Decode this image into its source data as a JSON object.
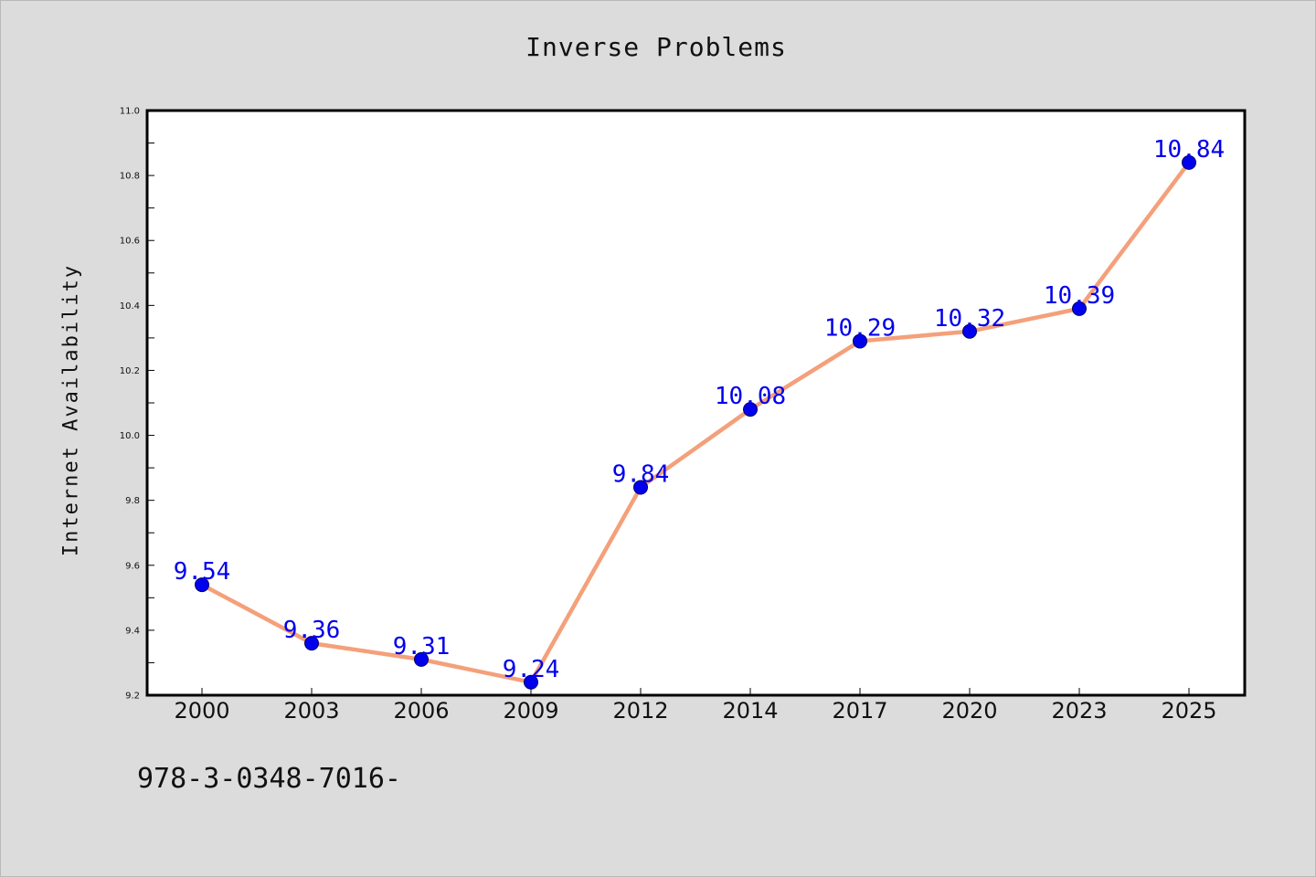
{
  "chart_data": {
    "type": "line",
    "title": "Inverse Problems",
    "ylabel": "Internet Availability",
    "xlabel": "",
    "categories": [
      "2000",
      "2003",
      "2006",
      "2009",
      "2012",
      "2014",
      "2017",
      "2020",
      "2023",
      "2025"
    ],
    "series": [
      {
        "values": [
          9.54,
          9.36,
          9.31,
          9.24,
          9.84,
          10.08,
          10.29,
          10.32,
          10.39,
          10.84
        ],
        "labels": [
          "9.54",
          "9.36",
          "9.31",
          "9.24",
          "9.84",
          "10.08",
          "10.29",
          "10.32",
          "10.39",
          "10.84"
        ]
      }
    ],
    "ylim": [
      9.2,
      11.0
    ],
    "yticks": [
      "9.2",
      "9.4",
      "9.6",
      "9.8",
      "10.0",
      "10.2",
      "10.4",
      "10.6",
      "10.8",
      "11.0"
    ],
    "grid": false,
    "legend": "none",
    "colors": {
      "line": "#f4a07a",
      "marker": "#0000ee",
      "label": "#0000ee",
      "background": "#dcdcdc",
      "plot_area": "#ffffff"
    }
  },
  "footer": {
    "code": "978-3-0348-7016-"
  }
}
